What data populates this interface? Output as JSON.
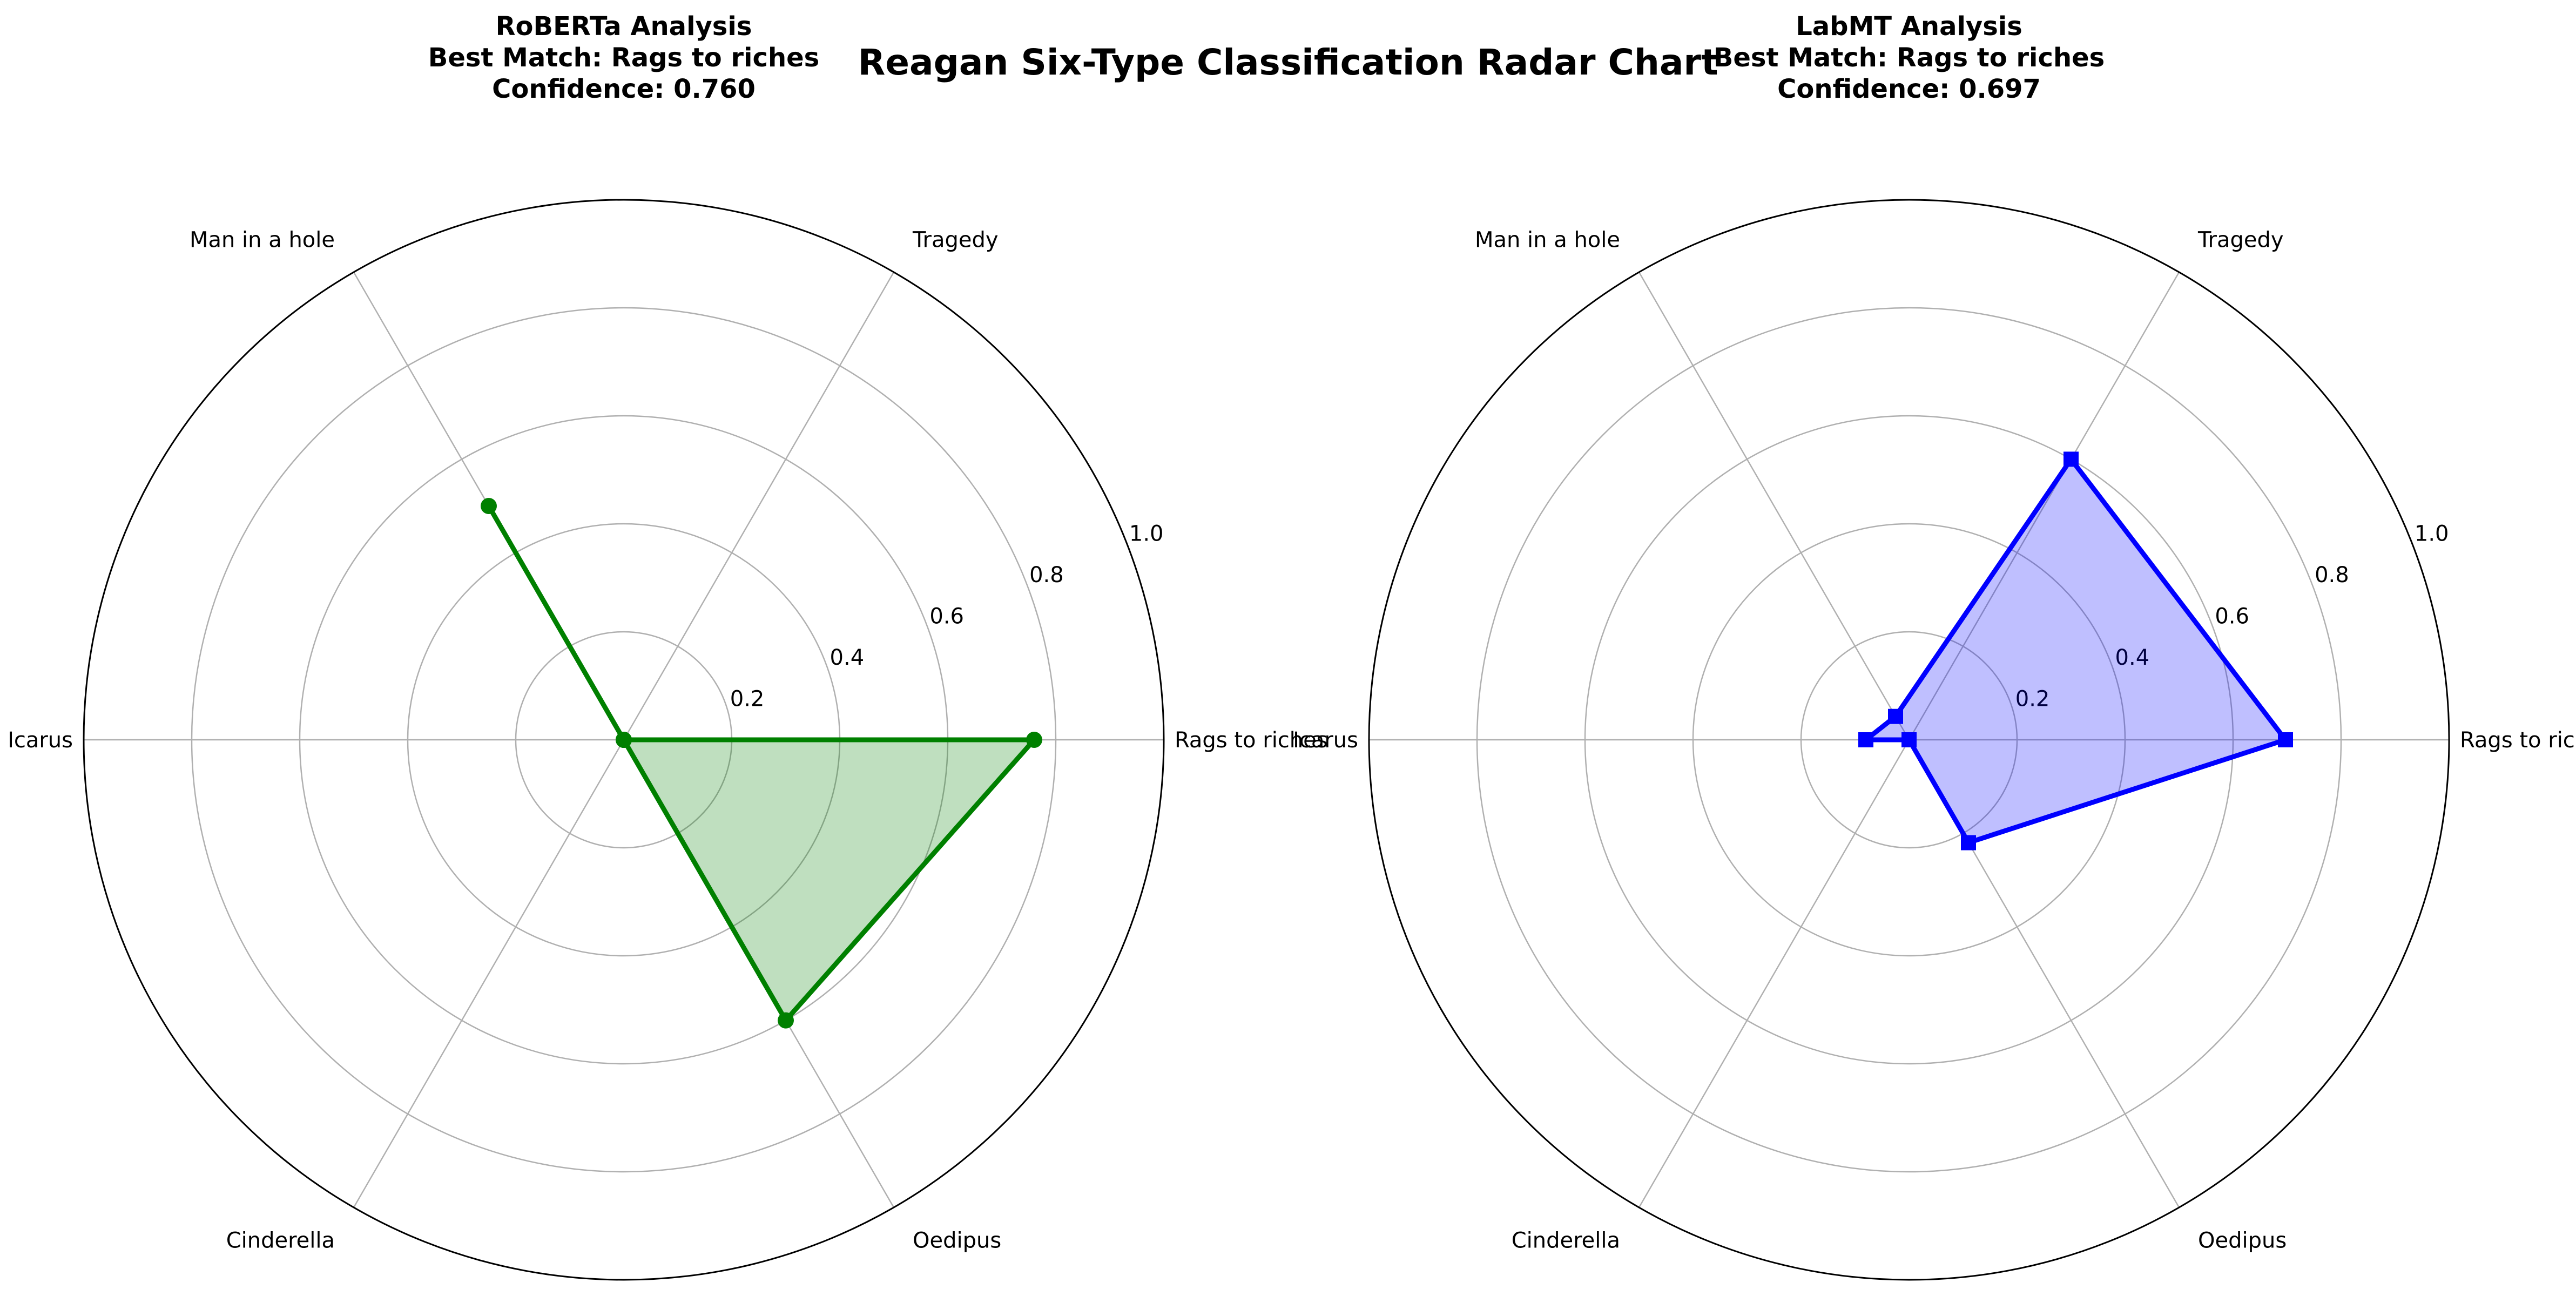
{
  "suptitle": "Reagan Six-Type Classification Radar Chart",
  "chart_data": [
    {
      "type": "radar",
      "title_lines": [
        "RoBERTa Analysis",
        "Best Match: Rags to riches",
        "Confidence: 0.760"
      ],
      "categories": [
        "Rags to riches",
        "Tragedy",
        "Man in a hole",
        "Icarus",
        "Cinderella",
        "Oedipus"
      ],
      "values": [
        0.76,
        0.0,
        0.5,
        0.0,
        0.0,
        0.6
      ],
      "rlim": [
        0,
        1.0
      ],
      "r_ticks": [
        "0.2",
        "0.4",
        "0.6",
        "0.8",
        "1.0"
      ],
      "line_color": "#008000",
      "fill_color": "#008000",
      "marker": "circle",
      "grid": true
    },
    {
      "type": "radar",
      "title_lines": [
        "LabMT Analysis",
        "Best Match: Rags to riches",
        "Confidence: 0.697"
      ],
      "categories": [
        "Rags to riches",
        "Tragedy",
        "Man in a hole",
        "Icarus",
        "Cinderella",
        "Oedipus"
      ],
      "values": [
        0.697,
        0.6,
        0.05,
        0.08,
        0.0,
        0.22
      ],
      "rlim": [
        0,
        1.0
      ],
      "r_ticks": [
        "0.2",
        "0.4",
        "0.6",
        "0.8",
        "1.0"
      ],
      "line_color": "#0000ff",
      "fill_color": "#0000ff",
      "marker": "square",
      "grid": true
    }
  ]
}
